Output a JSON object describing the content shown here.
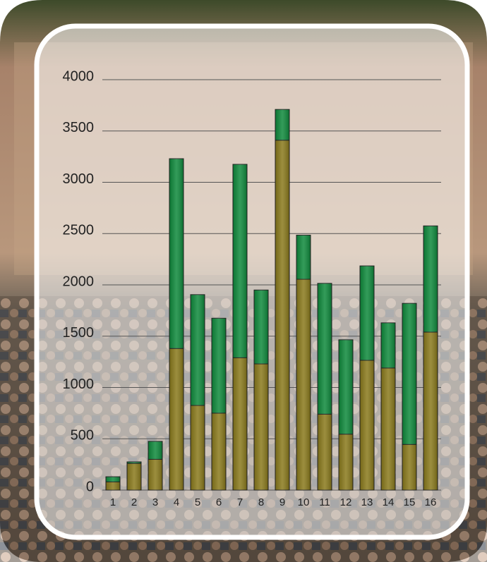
{
  "chart_data": {
    "type": "stacked-bar",
    "categories": [
      "1",
      "2",
      "3",
      "4",
      "5",
      "6",
      "7",
      "8",
      "9",
      "10",
      "11",
      "12",
      "13",
      "14",
      "15",
      "16"
    ],
    "series": [
      {
        "color": "#8a7a1c",
        "values": [
          80,
          260,
          300,
          1380,
          825,
          750,
          1290,
          1230,
          3410,
          2055,
          740,
          545,
          1265,
          1190,
          445,
          1540
        ]
      },
      {
        "color": "#0f8a3c",
        "values": [
          50,
          15,
          175,
          1850,
          1080,
          925,
          1885,
          720,
          300,
          430,
          1275,
          920,
          920,
          440,
          1375,
          1035
        ]
      }
    ],
    "ylim": [
      0,
      4000
    ],
    "yticks": [
      0,
      500,
      1000,
      1500,
      2000,
      2500,
      3000,
      3500,
      4000
    ],
    "grid": true
  }
}
